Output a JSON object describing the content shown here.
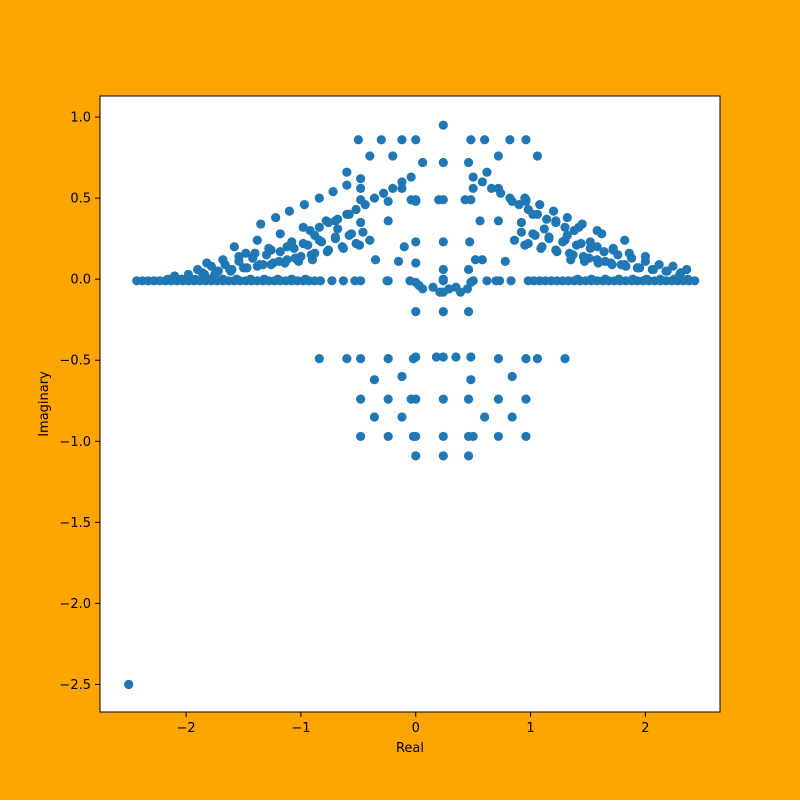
{
  "chart_data": {
    "type": "scatter",
    "title": "",
    "xlabel": "Real",
    "ylabel": "Imaginary",
    "xlim": [
      -2.75,
      2.65
    ],
    "ylim": [
      -2.67,
      1.13
    ],
    "xticks": [
      -2,
      -1,
      0,
      1,
      2
    ],
    "xtick_labels": [
      "−2",
      "−1",
      "0",
      "1",
      "2"
    ],
    "yticks": [
      -2.5,
      -2.0,
      -1.5,
      -1.0,
      -0.5,
      0.0,
      0.5,
      1.0
    ],
    "ytick_labels": [
      "−2.5",
      "−2.0",
      "−1.5",
      "−1.0",
      "−0.5",
      "0.0",
      "0.5",
      "1.0"
    ],
    "grid": false,
    "colors": {
      "background": "#FFA500",
      "plot_area": "#FFFFFF",
      "marker": "#1F77B4"
    },
    "x": [
      -2.5,
      -2.43,
      -2.38,
      -2.33,
      -2.28,
      -2.23,
      -2.18,
      -2.13,
      -2.08,
      -2.03,
      -1.98,
      -1.93,
      -1.88,
      -1.83,
      -1.78,
      -1.73,
      -1.68,
      -1.63,
      -1.58,
      -1.53,
      -1.48,
      -1.43,
      -1.38,
      -1.33,
      -1.28,
      -1.23,
      -1.18,
      -1.13,
      -1.08,
      -1.03,
      -0.98,
      -0.93,
      -0.88,
      -0.83,
      -0.73,
      -0.63,
      -0.53,
      -0.48,
      -0.25,
      0.0,
      0.03,
      0.06,
      0.15,
      0.21,
      0.24,
      0.29,
      0.35,
      0.39,
      0.45,
      0.48,
      0.5,
      0.62,
      0.73,
      0.83,
      0.98,
      1.03,
      1.08,
      1.13,
      1.18,
      1.23,
      1.28,
      1.33,
      1.38,
      1.43,
      1.48,
      1.53,
      1.58,
      1.63,
      1.68,
      1.73,
      1.78,
      1.83,
      1.88,
      1.93,
      1.98,
      2.03,
      2.08,
      2.13,
      2.18,
      2.23,
      2.28,
      2.33,
      2.38,
      2.43,
      -2.16,
      -2.1,
      -2.04,
      -1.98,
      -1.92,
      -1.86,
      -1.8,
      -1.74,
      -1.68,
      -1.62,
      -1.56,
      -1.5,
      -1.44,
      -1.38,
      -1.32,
      -1.26,
      -1.2,
      -1.14,
      -1.08,
      -1.02,
      -0.96,
      -0.9,
      1.35,
      1.41,
      1.47,
      1.53,
      1.59,
      1.65,
      1.71,
      1.77,
      1.83,
      1.89,
      1.95,
      2.01,
      2.07,
      2.13,
      2.19,
      2.25,
      2.31,
      2.37,
      -1.9,
      -1.84,
      -1.78,
      -1.72,
      -1.66,
      -1.6,
      -1.54,
      -1.48,
      -1.42,
      -1.36,
      -1.3,
      -1.24,
      -1.18,
      -1.12,
      -1.06,
      -1.0,
      -0.94,
      -0.88,
      -0.82,
      -0.76,
      -0.7,
      -0.64,
      -0.58,
      -0.52,
      -0.46,
      -0.4,
      0.86,
      0.92,
      0.98,
      1.04,
      1.1,
      1.16,
      1.22,
      1.28,
      1.34,
      1.4,
      1.46,
      1.52,
      1.58,
      1.64,
      1.7,
      1.76,
      1.82,
      1.88,
      1.94,
      2.0,
      2.06,
      2.12,
      2.18,
      2.24,
      2.3,
      2.36,
      -1.82,
      -1.75,
      -1.68,
      -1.61,
      -1.54,
      -1.47,
      -1.4,
      -1.33,
      -1.26,
      -1.19,
      -1.12,
      -1.05,
      -0.98,
      -0.91,
      -0.84,
      -0.77,
      -0.7,
      -0.63,
      -0.56,
      -0.49,
      0.95,
      1.02,
      1.09,
      1.16,
      1.23,
      1.3,
      1.37,
      1.44,
      1.51,
      1.58,
      1.65,
      1.72,
      1.79,
      1.86,
      1.93,
      2.0,
      -1.58,
      -1.48,
      -1.38,
      -1.28,
      -1.18,
      -1.08,
      -0.98,
      -0.88,
      -0.78,
      -0.68,
      -0.58,
      -0.48,
      0.92,
      1.02,
      1.12,
      1.22,
      1.32,
      1.42,
      1.52,
      1.62,
      1.72,
      1.82,
      -1.35,
      -1.22,
      -1.1,
      -0.97,
      -0.84,
      -0.72,
      -0.6,
      -0.48,
      0.95,
      1.08,
      1.2,
      1.32,
      1.45,
      1.58,
      -0.92,
      -0.84,
      -0.76,
      -0.68,
      -0.6,
      -0.52,
      -0.44,
      -0.36,
      -0.28,
      -0.2,
      -0.12,
      -0.04,
      0.5,
      0.58,
      0.66,
      0.74,
      0.82,
      0.9,
      0.98,
      1.06,
      1.14,
      1.22,
      1.3,
      1.38,
      -0.5,
      -0.4,
      -0.3,
      -0.2,
      -0.12,
      0.0,
      0.24,
      0.48,
      0.6,
      0.72,
      0.82,
      0.96,
      1.06,
      -0.6,
      -0.48,
      -0.24,
      -0.12,
      0.0,
      0.06,
      0.24,
      0.46,
      0.5,
      0.62,
      0.72,
      0.84,
      0.96,
      -0.7,
      -0.48,
      -0.24,
      -0.04,
      0.0,
      0.2,
      0.24,
      0.43,
      0.48,
      0.56,
      0.72,
      0.96,
      -0.35,
      -0.15,
      0.0,
      0.24,
      0.47,
      0.58,
      0.78,
      -0.1,
      0.0,
      0.24,
      0.46,
      0.52,
      0.24,
      -0.24,
      -0.05,
      0.24,
      0.5,
      0.7,
      0.0,
      0.24,
      0.46,
      -0.84,
      -0.6,
      -0.48,
      -0.24,
      -0.02,
      0.0,
      0.18,
      0.24,
      0.35,
      0.48,
      0.72,
      0.96,
      1.06,
      1.3,
      -0.36,
      -0.12,
      0.48,
      0.84,
      -0.48,
      -0.24,
      -0.04,
      0.0,
      0.24,
      0.46,
      0.72,
      0.96,
      -0.36,
      -0.12,
      0.6,
      0.84,
      -0.48,
      -0.24,
      -0.02,
      0.0,
      0.24,
      0.46,
      0.5,
      0.72,
      0.96,
      0.0,
      0.24,
      0.46
    ],
    "y": [
      -2.5,
      -0.01,
      -0.01,
      -0.01,
      -0.01,
      -0.01,
      -0.01,
      -0.01,
      -0.01,
      -0.01,
      -0.01,
      -0.01,
      -0.01,
      -0.01,
      -0.01,
      -0.01,
      -0.01,
      -0.01,
      -0.01,
      -0.01,
      -0.01,
      -0.01,
      -0.01,
      -0.01,
      -0.01,
      -0.01,
      -0.01,
      -0.01,
      -0.01,
      -0.01,
      -0.01,
      -0.01,
      -0.01,
      -0.01,
      -0.01,
      -0.01,
      -0.01,
      -0.01,
      -0.01,
      -0.02,
      -0.04,
      -0.06,
      -0.05,
      -0.08,
      -0.08,
      -0.06,
      -0.05,
      -0.08,
      -0.06,
      -0.02,
      -0.01,
      -0.01,
      -0.01,
      -0.01,
      -0.01,
      -0.01,
      -0.01,
      -0.01,
      -0.01,
      -0.01,
      -0.01,
      -0.01,
      -0.01,
      -0.01,
      -0.01,
      -0.01,
      -0.01,
      -0.01,
      -0.01,
      -0.01,
      -0.01,
      -0.01,
      -0.01,
      -0.01,
      -0.01,
      -0.01,
      -0.01,
      -0.01,
      -0.01,
      -0.01,
      -0.01,
      -0.01,
      -0.01,
      -0.01,
      0.0,
      0.02,
      0.0,
      0.03,
      0.0,
      0.04,
      0.0,
      0.05,
      0.0,
      0.06,
      0.0,
      0.07,
      0.0,
      0.08,
      0.0,
      0.09,
      0.0,
      0.1,
      0.0,
      0.11,
      0.0,
      0.12,
      0.12,
      0.0,
      0.11,
      0.0,
      0.1,
      0.0,
      0.09,
      0.0,
      0.08,
      0.0,
      0.07,
      0.0,
      0.06,
      0.0,
      0.05,
      0.0,
      0.04,
      0.0,
      0.06,
      0.03,
      0.08,
      0.05,
      0.09,
      0.06,
      0.11,
      0.07,
      0.13,
      0.09,
      0.15,
      0.1,
      0.17,
      0.12,
      0.19,
      0.14,
      0.21,
      0.16,
      0.23,
      0.18,
      0.25,
      0.2,
      0.27,
      0.22,
      0.29,
      0.24,
      0.24,
      0.29,
      0.22,
      0.27,
      0.2,
      0.25,
      0.18,
      0.23,
      0.16,
      0.21,
      0.14,
      0.19,
      0.12,
      0.17,
      0.1,
      0.15,
      0.09,
      0.13,
      0.07,
      0.11,
      0.06,
      0.09,
      0.05,
      0.08,
      0.03,
      0.06,
      0.1,
      0.03,
      0.12,
      0.05,
      0.14,
      0.07,
      0.16,
      0.09,
      0.18,
      0.11,
      0.2,
      0.13,
      0.22,
      0.15,
      0.24,
      0.17,
      0.26,
      0.19,
      0.28,
      0.21,
      0.21,
      0.28,
      0.19,
      0.26,
      0.17,
      0.24,
      0.15,
      0.22,
      0.13,
      0.2,
      0.11,
      0.18,
      0.09,
      0.16,
      0.07,
      0.14,
      0.2,
      0.16,
      0.24,
      0.19,
      0.28,
      0.23,
      0.32,
      0.27,
      0.36,
      0.31,
      0.4,
      0.35,
      0.35,
      0.4,
      0.31,
      0.36,
      0.27,
      0.32,
      0.23,
      0.28,
      0.19,
      0.24,
      0.34,
      0.38,
      0.42,
      0.46,
      0.5,
      0.54,
      0.58,
      0.62,
      0.5,
      0.46,
      0.42,
      0.38,
      0.34,
      0.3,
      0.3,
      0.32,
      0.35,
      0.37,
      0.4,
      0.43,
      0.46,
      0.5,
      0.53,
      0.56,
      0.6,
      0.63,
      0.63,
      0.6,
      0.56,
      0.53,
      0.5,
      0.46,
      0.43,
      0.4,
      0.37,
      0.35,
      0.32,
      0.3,
      0.86,
      0.76,
      0.86,
      0.76,
      0.86,
      0.86,
      0.95,
      0.86,
      0.86,
      0.76,
      0.86,
      0.86,
      0.76,
      0.66,
      0.56,
      0.48,
      0.56,
      0.48,
      0.72,
      0.72,
      0.72,
      0.56,
      0.66,
      0.56,
      0.48,
      0.48,
      0.36,
      0.49,
      0.36,
      0.49,
      0.49,
      0.49,
      0.49,
      0.49,
      0.49,
      0.36,
      0.36,
      0.49,
      0.12,
      0.11,
      0.23,
      0.23,
      0.23,
      0.12,
      0.11,
      0.2,
      0.1,
      0.0,
      0.06,
      0.12,
      0.06,
      -0.01,
      -0.01,
      -0.01,
      -0.01,
      -0.01,
      -0.2,
      -0.2,
      -0.2,
      -0.49,
      -0.49,
      -0.49,
      -0.49,
      -0.49,
      -0.48,
      -0.48,
      -0.48,
      -0.48,
      -0.48,
      -0.49,
      -0.49,
      -0.49,
      -0.49,
      -0.62,
      -0.6,
      -0.62,
      -0.6,
      -0.74,
      -0.74,
      -0.74,
      -0.74,
      -0.74,
      -0.74,
      -0.74,
      -0.74,
      -0.85,
      -0.85,
      -0.85,
      -0.85,
      -0.97,
      -0.97,
      -0.97,
      -0.97,
      -0.97,
      -0.97,
      -0.97,
      -0.97,
      -0.97,
      -1.09,
      -1.09,
      -1.09
    ]
  }
}
